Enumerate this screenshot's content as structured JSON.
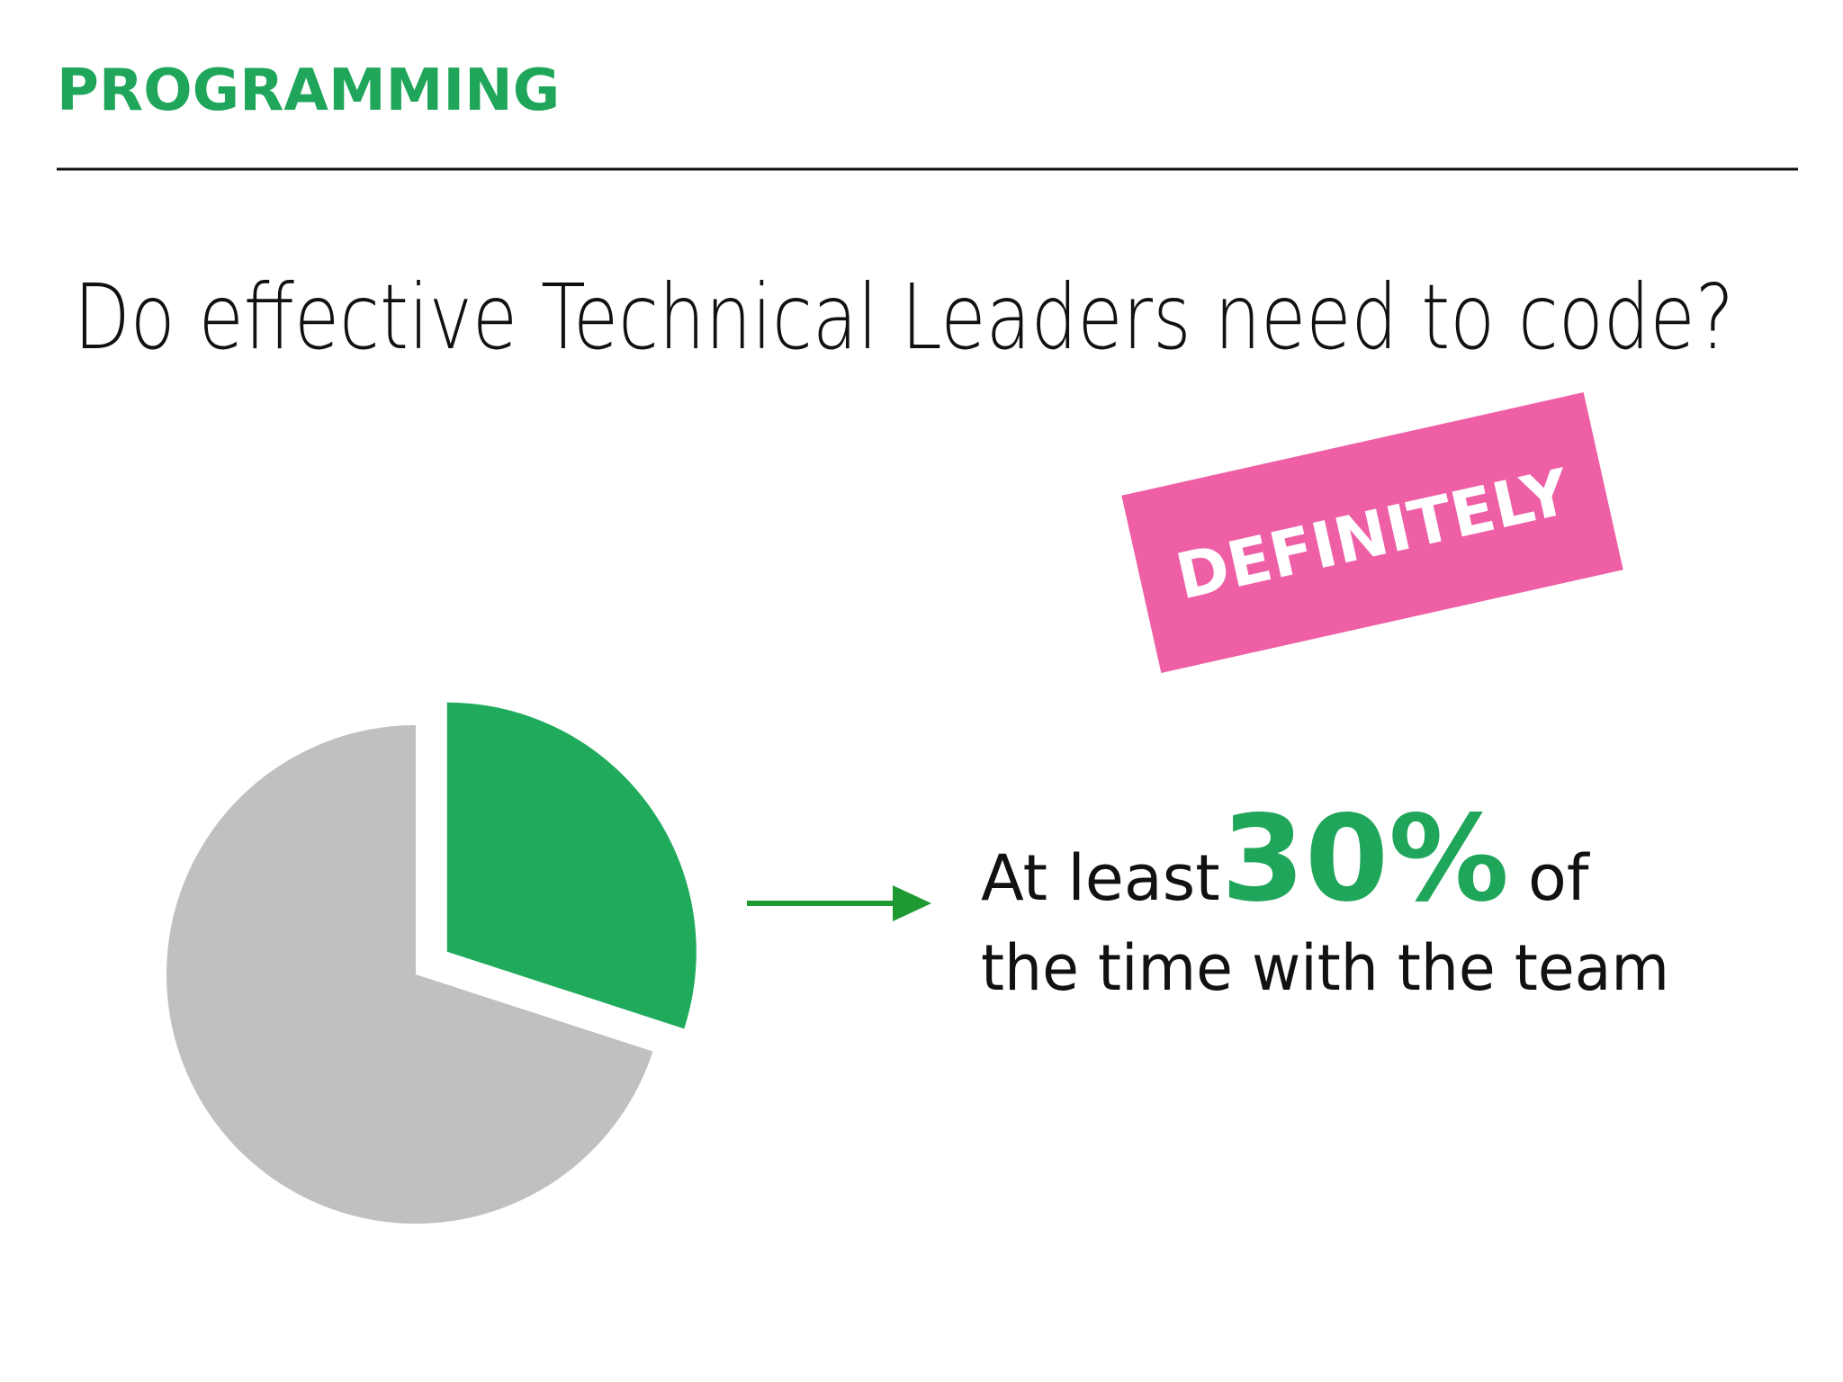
{
  "header": {
    "title": "PROGRAMMING"
  },
  "question": "Do effective Technical Leaders need to code?",
  "stamp": "DEFINITELY",
  "chart_data": {
    "type": "pie",
    "values": [
      30,
      70
    ],
    "value_labels": [
      "30%",
      null
    ],
    "colors": [
      "#1faa5c",
      "#c1bfc2"
    ],
    "annotation": {
      "prefix": "At least",
      "suffix": "of",
      "line2": "the time with the team"
    }
  }
}
